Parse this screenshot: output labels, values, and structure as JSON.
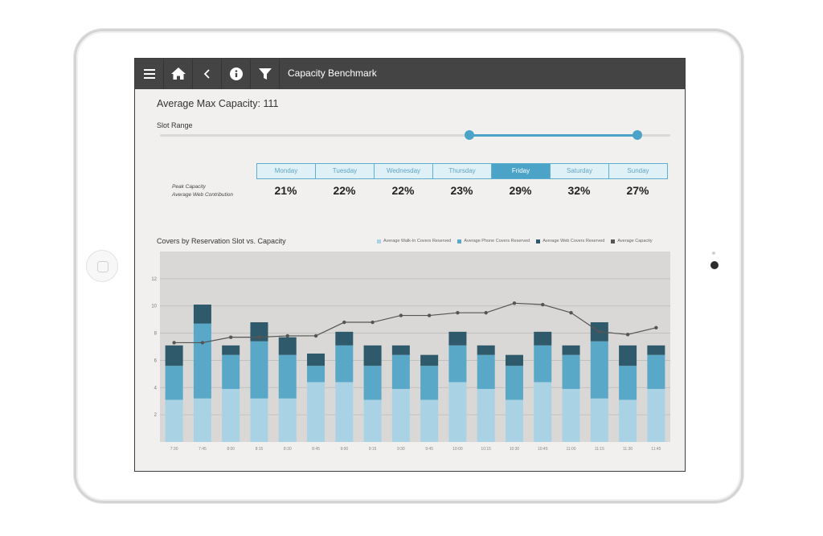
{
  "toolbar": {
    "title": "Capacity Benchmark"
  },
  "summary": {
    "average_max_capacity": "Average Max Capacity: 111"
  },
  "slot_range": {
    "label": "Slot Range"
  },
  "days": [
    {
      "label": "Monday",
      "pct": "21%",
      "active": false
    },
    {
      "label": "Tuesday",
      "pct": "22%",
      "active": false
    },
    {
      "label": "Wednesday",
      "pct": "22%",
      "active": false
    },
    {
      "label": "Thursday",
      "pct": "23%",
      "active": false
    },
    {
      "label": "Friday",
      "pct": "29%",
      "active": true
    },
    {
      "label": "Saturday",
      "pct": "32%",
      "active": false
    },
    {
      "label": "Sunday",
      "pct": "27%",
      "active": false
    }
  ],
  "row_labels": {
    "peak": "Peak Capacity",
    "web": "Average Web Contribution"
  },
  "colors": {
    "walkin": "#a9d3e4",
    "phone": "#5aa8c7",
    "web": "#2f5a6b",
    "capacity": "#555555",
    "accent": "#4ba4c8"
  },
  "chart_data": {
    "type": "bar",
    "title": "Covers by Reservation Slot vs. Capacity",
    "legend_placement": "top-right",
    "categories": [
      "7:30",
      "7:45",
      "8:00",
      "8:15",
      "8:30",
      "8:45",
      "9:00",
      "9:15",
      "9:30",
      "9:45",
      "10:00",
      "10:15",
      "10:30",
      "10:45",
      "11:00",
      "11:15",
      "11:30",
      "11:45"
    ],
    "ylim": [
      0,
      14
    ],
    "yticks": [
      2,
      4,
      6,
      8,
      10,
      12
    ],
    "stacked": true,
    "series": [
      {
        "name": "Average Walk-In Covers Reserved",
        "values": [
          3.1,
          3.2,
          3.9,
          3.2,
          3.2,
          4.4,
          4.4,
          3.1,
          3.9,
          3.1,
          4.4,
          3.9,
          3.1,
          4.4,
          3.9,
          3.2,
          3.1,
          3.9
        ]
      },
      {
        "name": "Average Phone Covers Reserved",
        "values": [
          2.5,
          5.5,
          2.5,
          4.2,
          3.2,
          1.2,
          2.7,
          2.5,
          2.5,
          2.5,
          2.7,
          2.5,
          2.5,
          2.7,
          2.5,
          4.2,
          2.5,
          2.5
        ]
      },
      {
        "name": "Average Web Covers Reserved",
        "values": [
          1.5,
          1.4,
          0.7,
          1.4,
          1.3,
          0.9,
          1.0,
          1.5,
          0.7,
          0.8,
          1.0,
          0.7,
          0.8,
          1.0,
          0.7,
          1.4,
          1.5,
          0.7
        ]
      },
      {
        "name": "Average Capacity",
        "type": "line",
        "values": [
          7.3,
          7.3,
          7.7,
          7.7,
          7.8,
          7.8,
          8.8,
          8.8,
          9.3,
          9.3,
          9.5,
          9.5,
          10.2,
          10.1,
          9.5,
          8.1,
          7.9,
          8.4
        ]
      }
    ]
  }
}
